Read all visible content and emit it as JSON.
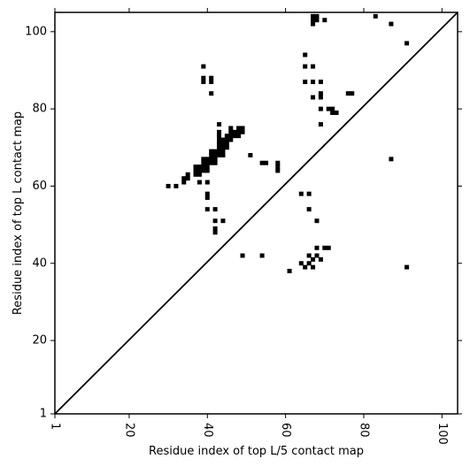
{
  "chart_data": {
    "type": "heatmap",
    "title": "",
    "xlabel": "Residue index of top L/5 contact map",
    "ylabel": "Residue index of top L contact map",
    "xlim": [
      1,
      104
    ],
    "ylim": [
      1,
      105
    ],
    "x_ticks": [
      1,
      20,
      40,
      60,
      80,
      100
    ],
    "y_ticks": [
      1,
      20,
      40,
      60,
      80,
      100
    ],
    "x_tick_labels": [
      "1",
      "20",
      "40",
      "60",
      "80",
      "100"
    ],
    "y_tick_labels": [
      "1",
      "20",
      "40",
      "60",
      "80",
      "100"
    ],
    "diagonal_line": true,
    "grid": false,
    "cell_color": "#000000",
    "background_color": "#ffffff",
    "cells": [
      [
        30,
        60
      ],
      [
        32,
        60
      ],
      [
        34,
        61
      ],
      [
        34,
        62
      ],
      [
        35,
        62
      ],
      [
        35,
        63
      ],
      [
        37,
        63
      ],
      [
        37,
        64
      ],
      [
        37,
        65
      ],
      [
        38,
        63
      ],
      [
        38,
        64
      ],
      [
        38,
        65
      ],
      [
        38,
        61
      ],
      [
        39,
        64
      ],
      [
        39,
        65
      ],
      [
        39,
        66
      ],
      [
        39,
        67
      ],
      [
        40,
        64
      ],
      [
        40,
        65
      ],
      [
        40,
        66
      ],
      [
        40,
        67
      ],
      [
        41,
        66
      ],
      [
        41,
        67
      ],
      [
        41,
        68
      ],
      [
        41,
        69
      ],
      [
        42,
        66
      ],
      [
        42,
        67
      ],
      [
        42,
        68
      ],
      [
        42,
        69
      ],
      [
        43,
        68
      ],
      [
        43,
        69
      ],
      [
        43,
        70
      ],
      [
        43,
        71
      ],
      [
        43,
        72
      ],
      [
        43,
        73
      ],
      [
        43,
        74
      ],
      [
        44,
        68
      ],
      [
        44,
        69
      ],
      [
        44,
        70
      ],
      [
        44,
        71
      ],
      [
        44,
        72
      ],
      [
        45,
        70
      ],
      [
        45,
        71
      ],
      [
        45,
        72
      ],
      [
        45,
        73
      ],
      [
        46,
        72
      ],
      [
        46,
        73
      ],
      [
        46,
        74
      ],
      [
        46,
        75
      ],
      [
        47,
        73
      ],
      [
        47,
        74
      ],
      [
        48,
        73
      ],
      [
        48,
        74
      ],
      [
        48,
        75
      ],
      [
        49,
        74
      ],
      [
        49,
        75
      ],
      [
        40,
        61
      ],
      [
        40,
        57
      ],
      [
        40,
        58
      ],
      [
        40,
        54
      ],
      [
        42,
        54
      ],
      [
        42,
        51
      ],
      [
        42,
        49
      ],
      [
        42,
        48
      ],
      [
        44,
        51
      ],
      [
        39,
        87
      ],
      [
        39,
        88
      ],
      [
        39,
        91
      ],
      [
        41,
        87
      ],
      [
        41,
        88
      ],
      [
        41,
        84
      ],
      [
        43,
        76
      ],
      [
        51,
        68
      ],
      [
        54,
        66
      ],
      [
        55,
        66
      ],
      [
        58,
        64
      ],
      [
        58,
        65
      ],
      [
        58,
        66
      ],
      [
        49,
        42
      ],
      [
        54,
        42
      ],
      [
        61,
        38
      ],
      [
        64,
        58
      ],
      [
        66,
        58
      ],
      [
        66,
        54
      ],
      [
        68,
        51
      ],
      [
        64,
        40
      ],
      [
        65,
        39
      ],
      [
        66,
        40
      ],
      [
        66,
        42
      ],
      [
        67,
        41
      ],
      [
        67,
        39
      ],
      [
        68,
        42
      ],
      [
        68,
        44
      ],
      [
        69,
        41
      ],
      [
        70,
        44
      ],
      [
        71,
        44
      ],
      [
        65,
        87
      ],
      [
        65,
        91
      ],
      [
        65,
        94
      ],
      [
        67,
        87
      ],
      [
        67,
        91
      ],
      [
        67,
        83
      ],
      [
        69,
        87
      ],
      [
        69,
        83
      ],
      [
        69,
        84
      ],
      [
        69,
        80
      ],
      [
        69,
        76
      ],
      [
        71,
        80
      ],
      [
        72,
        80
      ],
      [
        72,
        79
      ],
      [
        73,
        79
      ],
      [
        76,
        84
      ],
      [
        77,
        84
      ],
      [
        67,
        102
      ],
      [
        67,
        103
      ],
      [
        67,
        104
      ],
      [
        68,
        103
      ],
      [
        68,
        104
      ],
      [
        70,
        103
      ],
      [
        83,
        104
      ],
      [
        87,
        102
      ],
      [
        91,
        97
      ],
      [
        87,
        67
      ],
      [
        91,
        39
      ]
    ]
  }
}
